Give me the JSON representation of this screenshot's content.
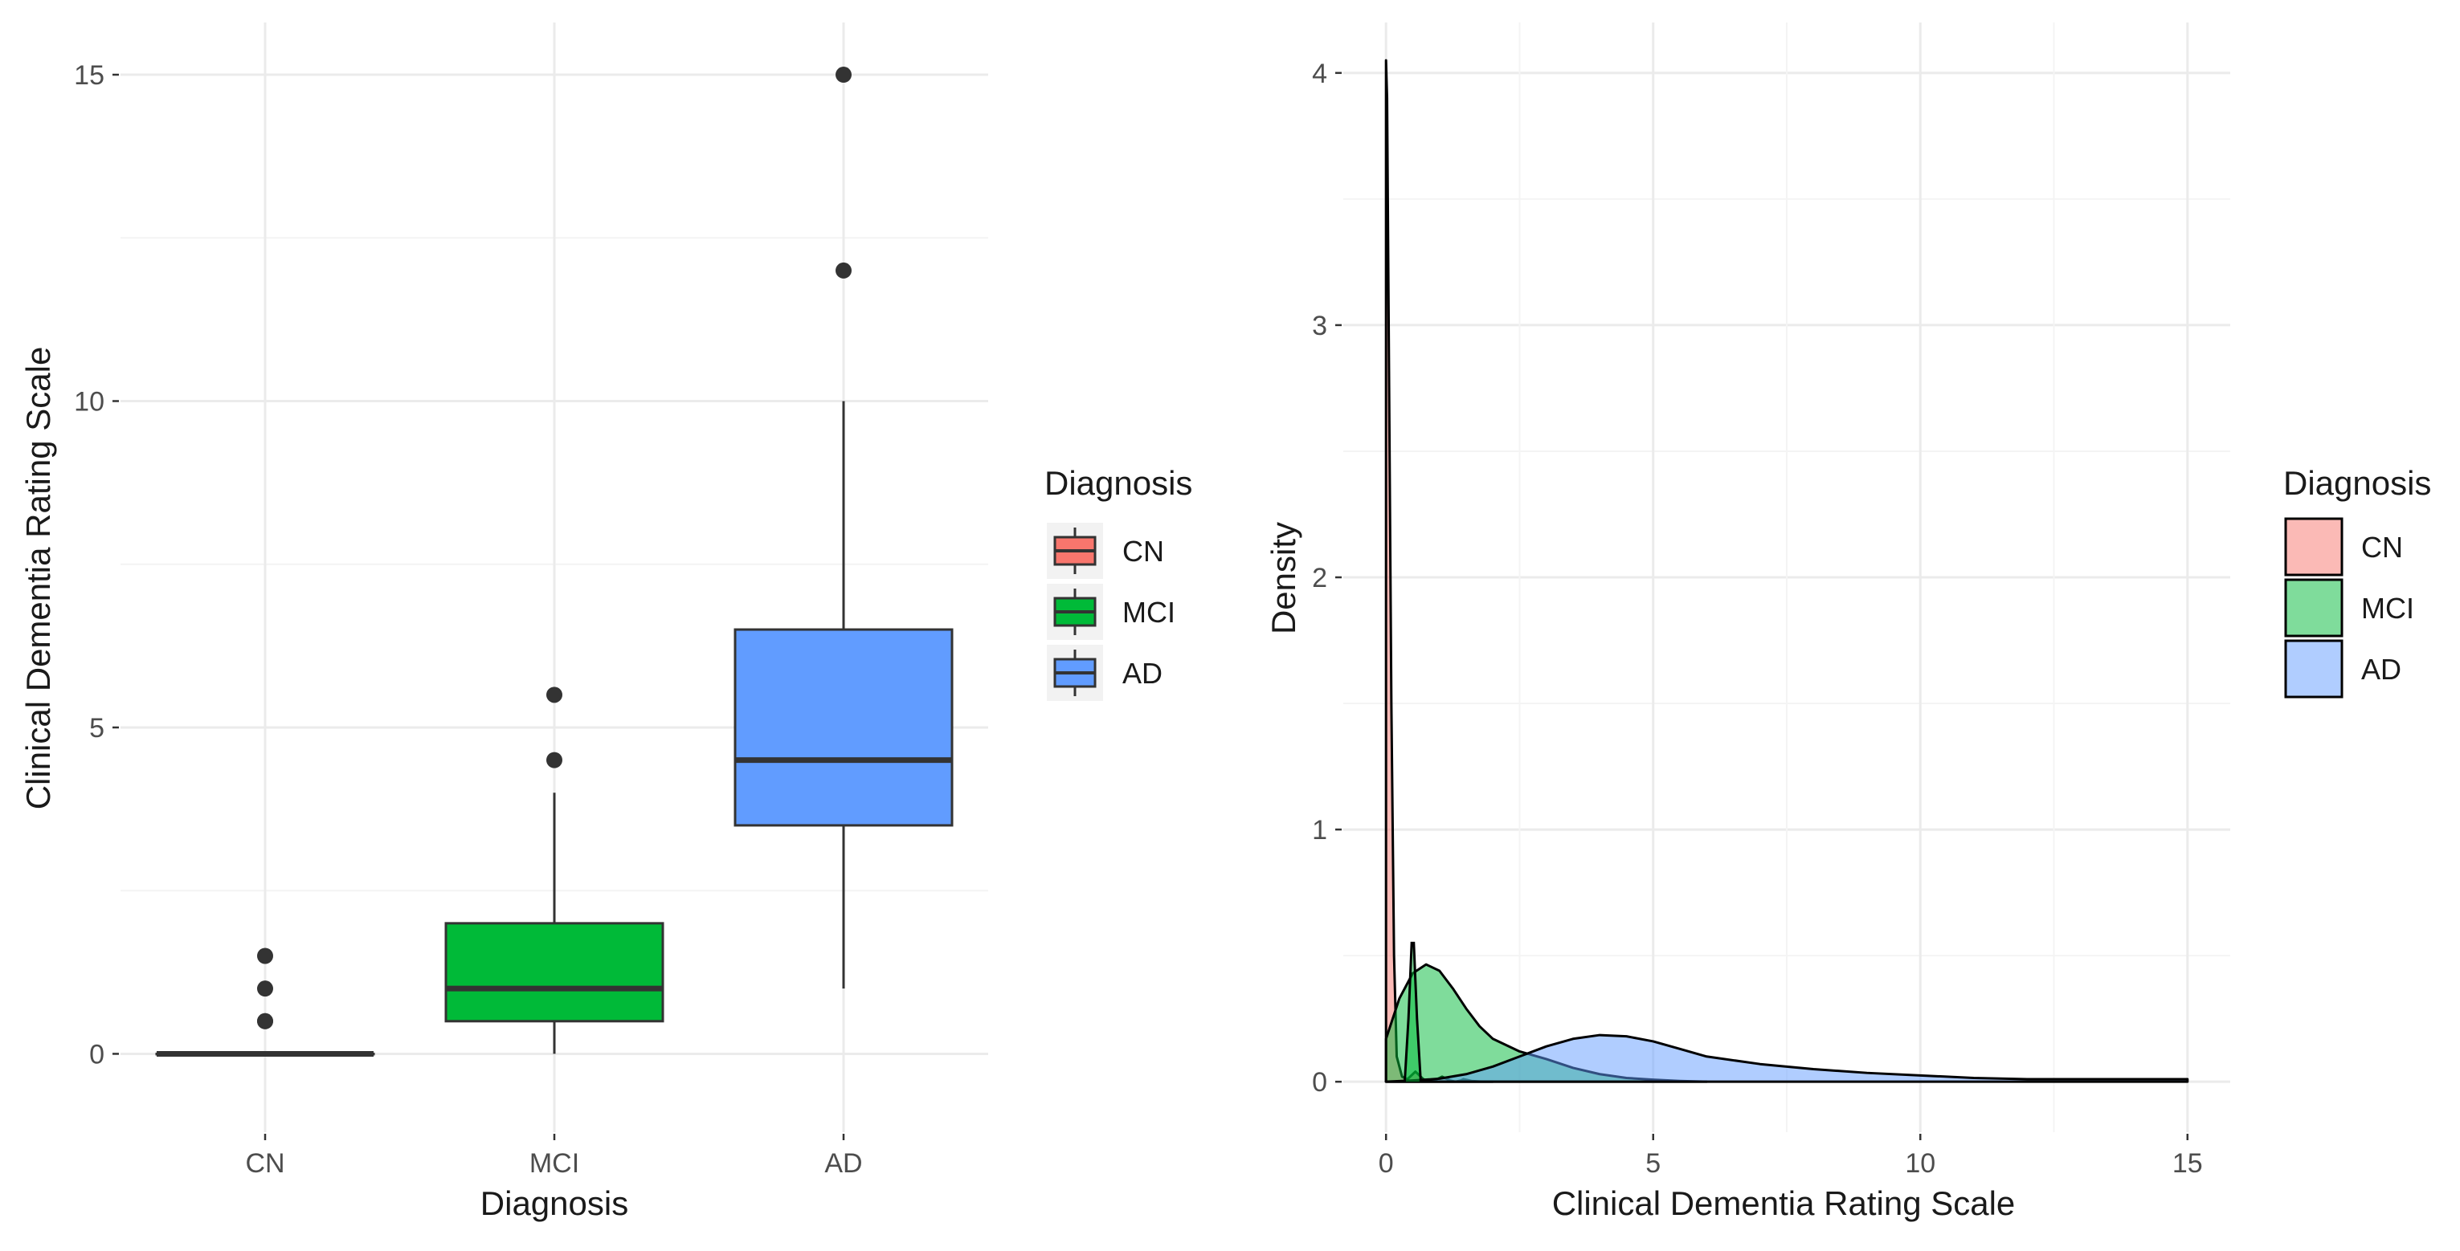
{
  "chart_data": [
    {
      "type": "boxplot",
      "title": "",
      "xlabel": "Diagnosis",
      "ylabel": "Clinical Dementia  Rating Scale",
      "ylim": [
        -1.2,
        15.8
      ],
      "yticks": [
        0,
        5,
        10,
        15
      ],
      "y_tick_labels": [
        "0",
        "5",
        "10",
        "15"
      ],
      "categories": [
        "CN",
        "MCI",
        "AD"
      ],
      "colors": [
        "#F8766D",
        "#00BA38",
        "#619CFF"
      ],
      "boxes": [
        {
          "name": "CN",
          "whisker_low": 0,
          "q1": 0,
          "median": 0,
          "q3": 0,
          "whisker_high": 0,
          "outliers": [
            0.5,
            0.5,
            1.0,
            1.5
          ]
        },
        {
          "name": "MCI",
          "whisker_low": 0,
          "q1": 0.5,
          "median": 1.0,
          "q3": 2.0,
          "whisker_high": 4.0,
          "outliers": [
            4.5,
            5.5
          ]
        },
        {
          "name": "AD",
          "whisker_low": 1.0,
          "q1": 3.5,
          "median": 4.5,
          "q3": 6.5,
          "whisker_high": 10.0,
          "outliers": [
            12,
            15
          ]
        }
      ],
      "legend": {
        "title": "Diagnosis",
        "position": "right",
        "entries": [
          "CN",
          "MCI",
          "AD"
        ]
      }
    },
    {
      "type": "area",
      "subtype": "density",
      "title": "",
      "xlabel": "Clinical Dementia  Rating Scale",
      "ylabel": "Density",
      "xlim": [
        -0.8,
        15.8
      ],
      "ylim": [
        -0.2,
        4.2
      ],
      "xticks": [
        0,
        5,
        10,
        15
      ],
      "x_tick_labels": [
        "0",
        "5",
        "10",
        "15"
      ],
      "yticks": [
        0,
        1,
        2,
        3,
        4
      ],
      "y_tick_labels": [
        "0",
        "1",
        "2",
        "3",
        "4"
      ],
      "series": [
        {
          "name": "CN",
          "color": "#F8766D",
          "x": [
            0,
            0.02,
            0.05,
            0.1,
            0.15,
            0.2,
            0.3,
            0.4,
            0.5,
            0.55,
            0.6,
            0.7,
            0.8,
            0.9,
            1.0,
            1.05,
            1.1,
            1.2,
            1.3,
            1.4,
            1.45,
            1.5,
            1.6,
            1.8,
            2.0
          ],
          "y": [
            4.05,
            3.9,
            3.0,
            1.5,
            0.5,
            0.1,
            0.02,
            0.01,
            0.03,
            0.04,
            0.03,
            0.01,
            0.0,
            0.005,
            0.015,
            0.02,
            0.015,
            0.005,
            0.0,
            0.005,
            0.01,
            0.008,
            0.003,
            0.0,
            0.0
          ]
        },
        {
          "name": "MCI",
          "color": "#00BA38",
          "x": [
            0,
            0.25,
            0.5,
            0.75,
            1.0,
            1.25,
            1.5,
            1.75,
            2.0,
            2.5,
            3.0,
            3.5,
            4.0,
            4.5,
            5.0,
            5.5,
            6.0
          ],
          "y": [
            0.17,
            0.33,
            0.43,
            0.465,
            0.44,
            0.37,
            0.29,
            0.22,
            0.17,
            0.12,
            0.09,
            0.055,
            0.03,
            0.015,
            0.008,
            0.003,
            0.0
          ]
        },
        {
          "name": "AD",
          "color": "#619CFF",
          "x": [
            0,
            0.5,
            1.0,
            1.5,
            2.0,
            2.5,
            3.0,
            3.5,
            4.0,
            4.5,
            5.0,
            5.5,
            6.0,
            7.0,
            8.0,
            9.0,
            10.0,
            11.0,
            12.0,
            13.0,
            14.0,
            15.0
          ],
          "y": [
            0.0,
            0.005,
            0.012,
            0.03,
            0.06,
            0.1,
            0.14,
            0.17,
            0.185,
            0.18,
            0.16,
            0.13,
            0.1,
            0.07,
            0.05,
            0.035,
            0.025,
            0.015,
            0.01,
            0.01,
            0.01,
            0.01
          ]
        },
        {
          "name": "CN",
          "color": "#000000",
          "role": "spike-outline",
          "x": [
            0.35,
            0.42,
            0.48,
            0.52,
            0.58,
            0.65
          ],
          "y": [
            0.0,
            0.25,
            0.55,
            0.55,
            0.25,
            0.0
          ]
        }
      ],
      "legend": {
        "title": "Diagnosis",
        "position": "right",
        "entries": [
          "CN",
          "MCI",
          "AD"
        ]
      }
    }
  ]
}
